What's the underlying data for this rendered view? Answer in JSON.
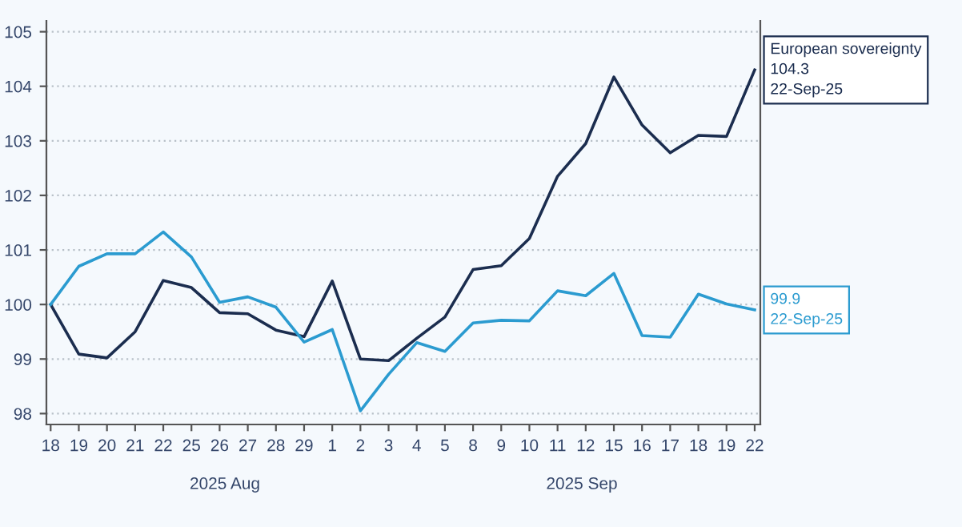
{
  "chart_data": {
    "type": "line",
    "categories": [
      "18",
      "19",
      "20",
      "21",
      "22",
      "25",
      "26",
      "27",
      "28",
      "29",
      "1",
      "2",
      "3",
      "4",
      "5",
      "8",
      "9",
      "10",
      "11",
      "12",
      "15",
      "16",
      "17",
      "18",
      "19",
      "22"
    ],
    "series": [
      {
        "color": "#1b2d4f",
        "values": [
          100,
          99.09,
          99.02,
          99.5,
          100.44,
          100.31,
          99.85,
          99.83,
          99.53,
          99.41,
          100.43,
          99.0,
          98.97,
          99.38,
          99.77,
          100.64,
          100.71,
          101.21,
          102.35,
          102.95,
          104.17,
          103.29,
          102.78,
          103.1,
          103.08,
          104.3
        ]
      },
      {
        "color": "#2b9bd0",
        "values": [
          100,
          100.7,
          100.93,
          100.93,
          101.33,
          100.87,
          100.04,
          100.14,
          99.95,
          99.31,
          99.54,
          98.05,
          98.72,
          99.3,
          99.14,
          99.66,
          99.71,
          99.7,
          100.25,
          100.16,
          100.57,
          99.43,
          99.4,
          100.19,
          100.01,
          99.9
        ]
      }
    ],
    "ylim": [
      97.8,
      105.2
    ],
    "yticks": [
      98,
      99,
      100,
      101,
      102,
      103,
      104,
      105
    ],
    "grid": "y",
    "marker": "none",
    "line_style": "solid",
    "annotations": [
      "2025 Aug",
      "2025 Sep",
      "European sovereignty\n104.3\n22-Sep-25",
      "99.9\n22-Sep-25"
    ]
  }
}
